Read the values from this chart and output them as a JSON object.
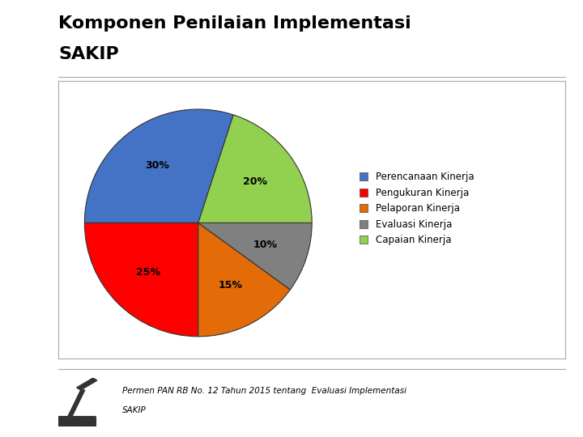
{
  "title_line1": "Komponen Penilaian Implementasi",
  "title_line2": "SAKIP",
  "slices": [
    30,
    25,
    15,
    10,
    20
  ],
  "labels": [
    "30%",
    "25%",
    "15%",
    "10%",
    "20%"
  ],
  "legend_labels": [
    "Perencanaan Kinerja",
    "Pengukuran Kinerja",
    "Pelaporan Kinerja",
    "Evaluasi Kinerja",
    "Capaian Kinerja"
  ],
  "colors": [
    "#4472C4",
    "#FF0000",
    "#E36C09",
    "#808080",
    "#92D050"
  ],
  "startangle": 72,
  "footnote_line1": "Permen PAN RB No. 12 Tahun 2015 tentang  Evaluasi Implementasi",
  "footnote_line2": "SAKIP",
  "background_color": "#FFFFFF",
  "title_fontsize": 16,
  "label_fontsize": 9,
  "legend_fontsize": 8.5
}
